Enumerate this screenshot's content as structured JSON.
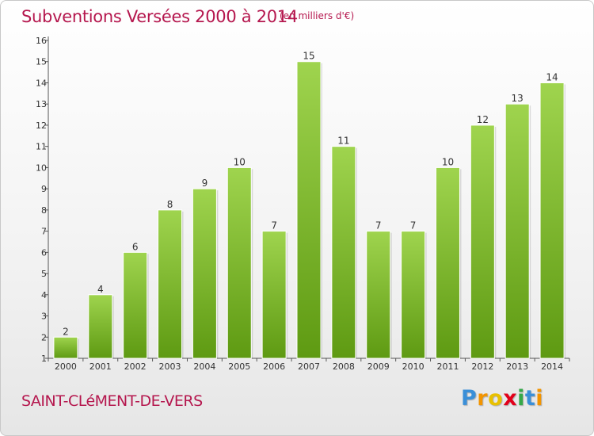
{
  "header": {
    "title": "Subventions Versées 2000 à 2014",
    "unit": "(en milliers d'€)"
  },
  "footer": {
    "commune": "SAINT-CLéMENT-DE-VERS",
    "logo_letters": [
      "P",
      "r",
      "o",
      "x",
      "i",
      "t",
      "i"
    ],
    "logo_colors": [
      "#3a8fd8",
      "#f29400",
      "#e8c000",
      "#e2001a",
      "#35a848",
      "#3a8fd8",
      "#f29400"
    ]
  },
  "colors": {
    "bar_light": "#9fd44e",
    "bar_dark": "#5e9a12",
    "title": "#b5174e"
  },
  "chart_data": {
    "type": "bar",
    "categories": [
      "2000",
      "2001",
      "2002",
      "2003",
      "2004",
      "2005",
      "2006",
      "2007",
      "2008",
      "2009",
      "2010",
      "2011",
      "2012",
      "2013",
      "2014"
    ],
    "values": [
      2,
      4,
      6,
      8,
      9,
      10,
      7,
      15,
      11,
      7,
      7,
      10,
      12,
      13,
      14
    ],
    "title": "Subventions Versées 2000 à 2014",
    "ylim": [
      1,
      16
    ],
    "yticks": [
      1,
      2,
      3,
      4,
      5,
      6,
      7,
      8,
      9,
      10,
      11,
      12,
      13,
      14,
      15,
      16
    ],
    "grid": false,
    "data_labels": true
  }
}
